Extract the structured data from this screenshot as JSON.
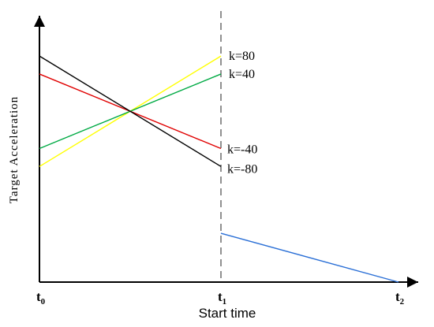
{
  "chart_data": {
    "type": "line",
    "xlabel": "Start time",
    "ylabel": "Target Acceleration",
    "xticks": [
      {
        "label": "t",
        "sub": "0"
      },
      {
        "label": "t",
        "sub": "1"
      },
      {
        "label": "t",
        "sub": "2"
      }
    ],
    "series": [
      {
        "name": "k=80",
        "color": "#ffff00",
        "points": [
          [
            0,
            0.45
          ],
          [
            1,
            0.88
          ]
        ]
      },
      {
        "name": "k=40",
        "color": "#00aa44",
        "points": [
          [
            0,
            0.52
          ],
          [
            1,
            0.81
          ]
        ]
      },
      {
        "name": "k=-40",
        "color": "#e00000",
        "points": [
          [
            0,
            0.81
          ],
          [
            1,
            0.52
          ]
        ]
      },
      {
        "name": "k=-80",
        "color": "#000000",
        "points": [
          [
            0,
            0.88
          ],
          [
            1,
            0.45
          ]
        ]
      },
      {
        "name": "",
        "color": "#2a6fd6",
        "points": [
          [
            1,
            0.19
          ],
          [
            2,
            0.0
          ]
        ]
      }
    ],
    "reference_lines": [
      {
        "type": "vertical",
        "x": 1,
        "style": "dashed",
        "color": "#555555"
      }
    ],
    "xlim": [
      0,
      2
    ],
    "ylim": [
      0,
      1
    ],
    "grid": false,
    "legend": "inline labels at right end of lines"
  }
}
